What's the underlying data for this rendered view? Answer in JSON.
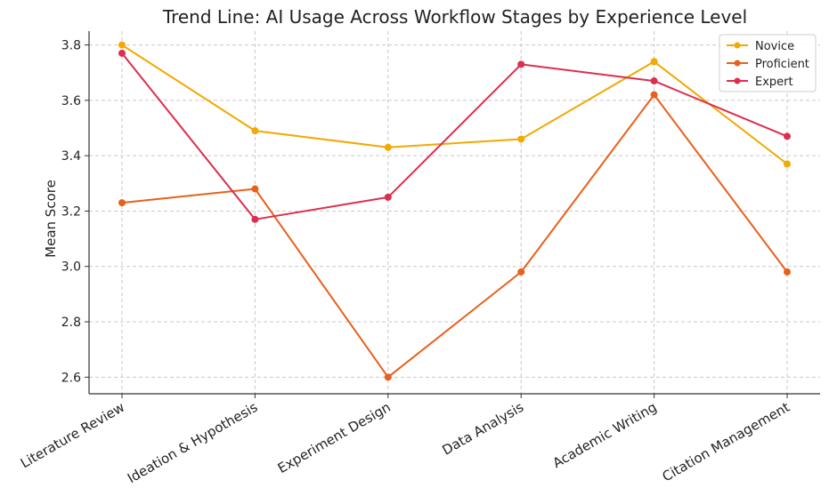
{
  "chart_data": {
    "type": "line",
    "title": "Trend Line: AI Usage Across Workflow Stages by Experience Level",
    "xlabel": "",
    "ylabel": "Mean Score",
    "categories": [
      "Literature Review",
      "Ideation & Hypothesis",
      "Experiment Design",
      "Data Analysis",
      "Academic Writing",
      "Citation Management"
    ],
    "ylim": [
      2.54,
      3.85
    ],
    "yticks": [
      "2.6",
      "2.8",
      "3.0",
      "3.2",
      "3.4",
      "3.6",
      "3.8"
    ],
    "grid": true,
    "legend_position": "top-right",
    "series": [
      {
        "name": "Novice",
        "color": "#f2a900",
        "values": [
          3.8,
          3.49,
          3.43,
          3.46,
          3.74,
          3.37
        ]
      },
      {
        "name": "Proficient",
        "color": "#e8601c",
        "values": [
          3.23,
          3.28,
          2.6,
          2.98,
          3.62,
          2.98
        ]
      },
      {
        "name": "Expert",
        "color": "#dc2e4e",
        "values": [
          3.77,
          3.17,
          3.25,
          3.73,
          3.67,
          3.47
        ]
      }
    ]
  }
}
